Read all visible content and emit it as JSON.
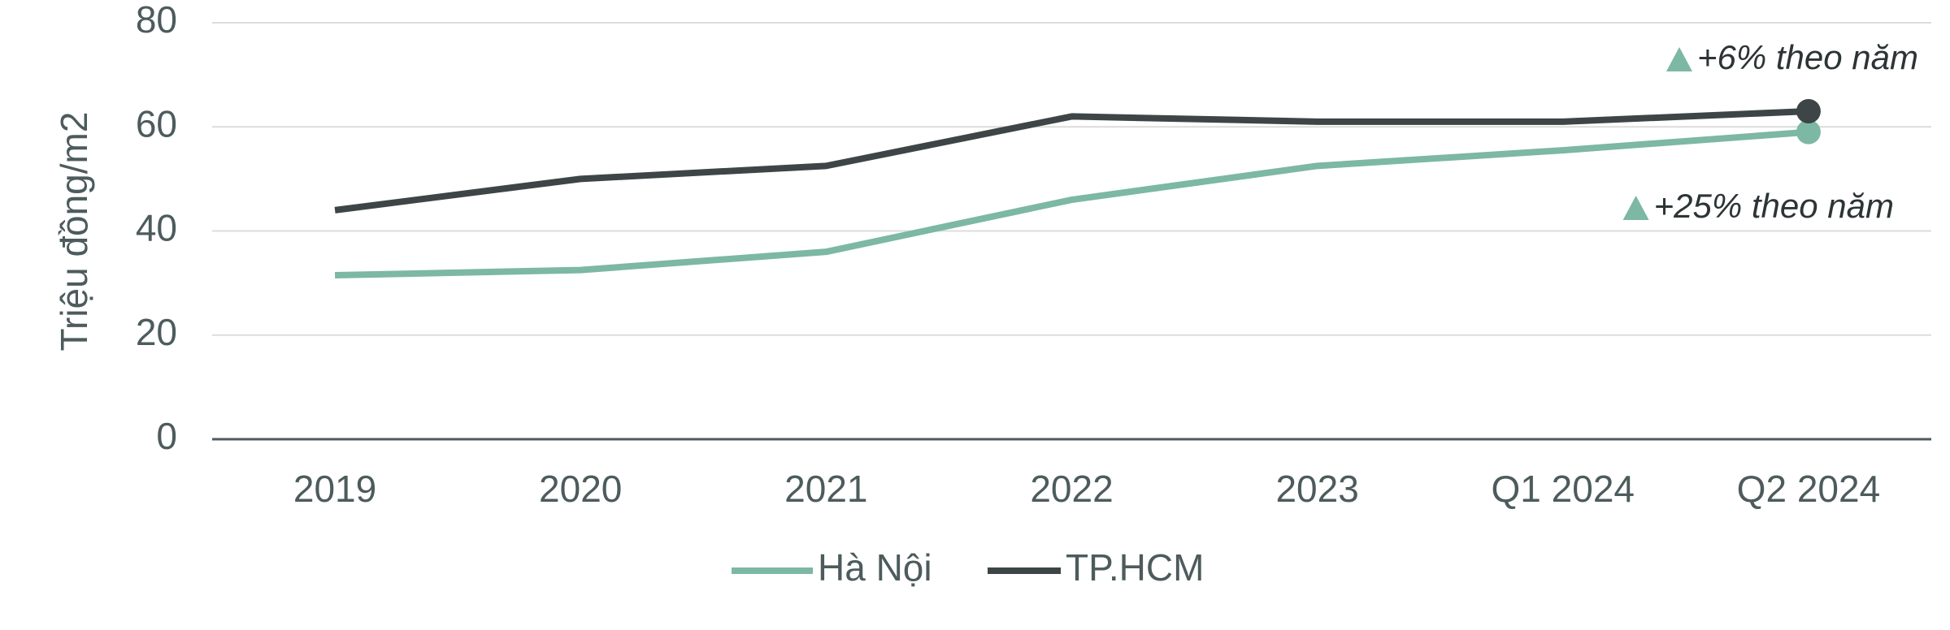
{
  "chart_data": {
    "type": "line",
    "y_label": "Triệu đồng/m2",
    "categories": [
      "2019",
      "2020",
      "2021",
      "2022",
      "2023",
      "Q1 2024",
      "Q2 2024"
    ],
    "series": [
      {
        "name": "Hà Nội",
        "color": "#7cb8a3",
        "values": [
          31.5,
          32.5,
          36,
          46,
          52.5,
          55.5,
          59
        ]
      },
      {
        "name": "TP.HCM",
        "color": "#3d4547",
        "values": [
          44,
          50,
          52.5,
          62,
          61,
          61,
          63
        ]
      }
    ],
    "ylim": [
      0,
      80
    ],
    "yticks": [
      0,
      20,
      40,
      60,
      80
    ],
    "grid": true,
    "annotations": [
      {
        "text": "+6% theo năm",
        "series": 1
      },
      {
        "text": "+25% theo năm",
        "series": 0
      }
    ]
  }
}
